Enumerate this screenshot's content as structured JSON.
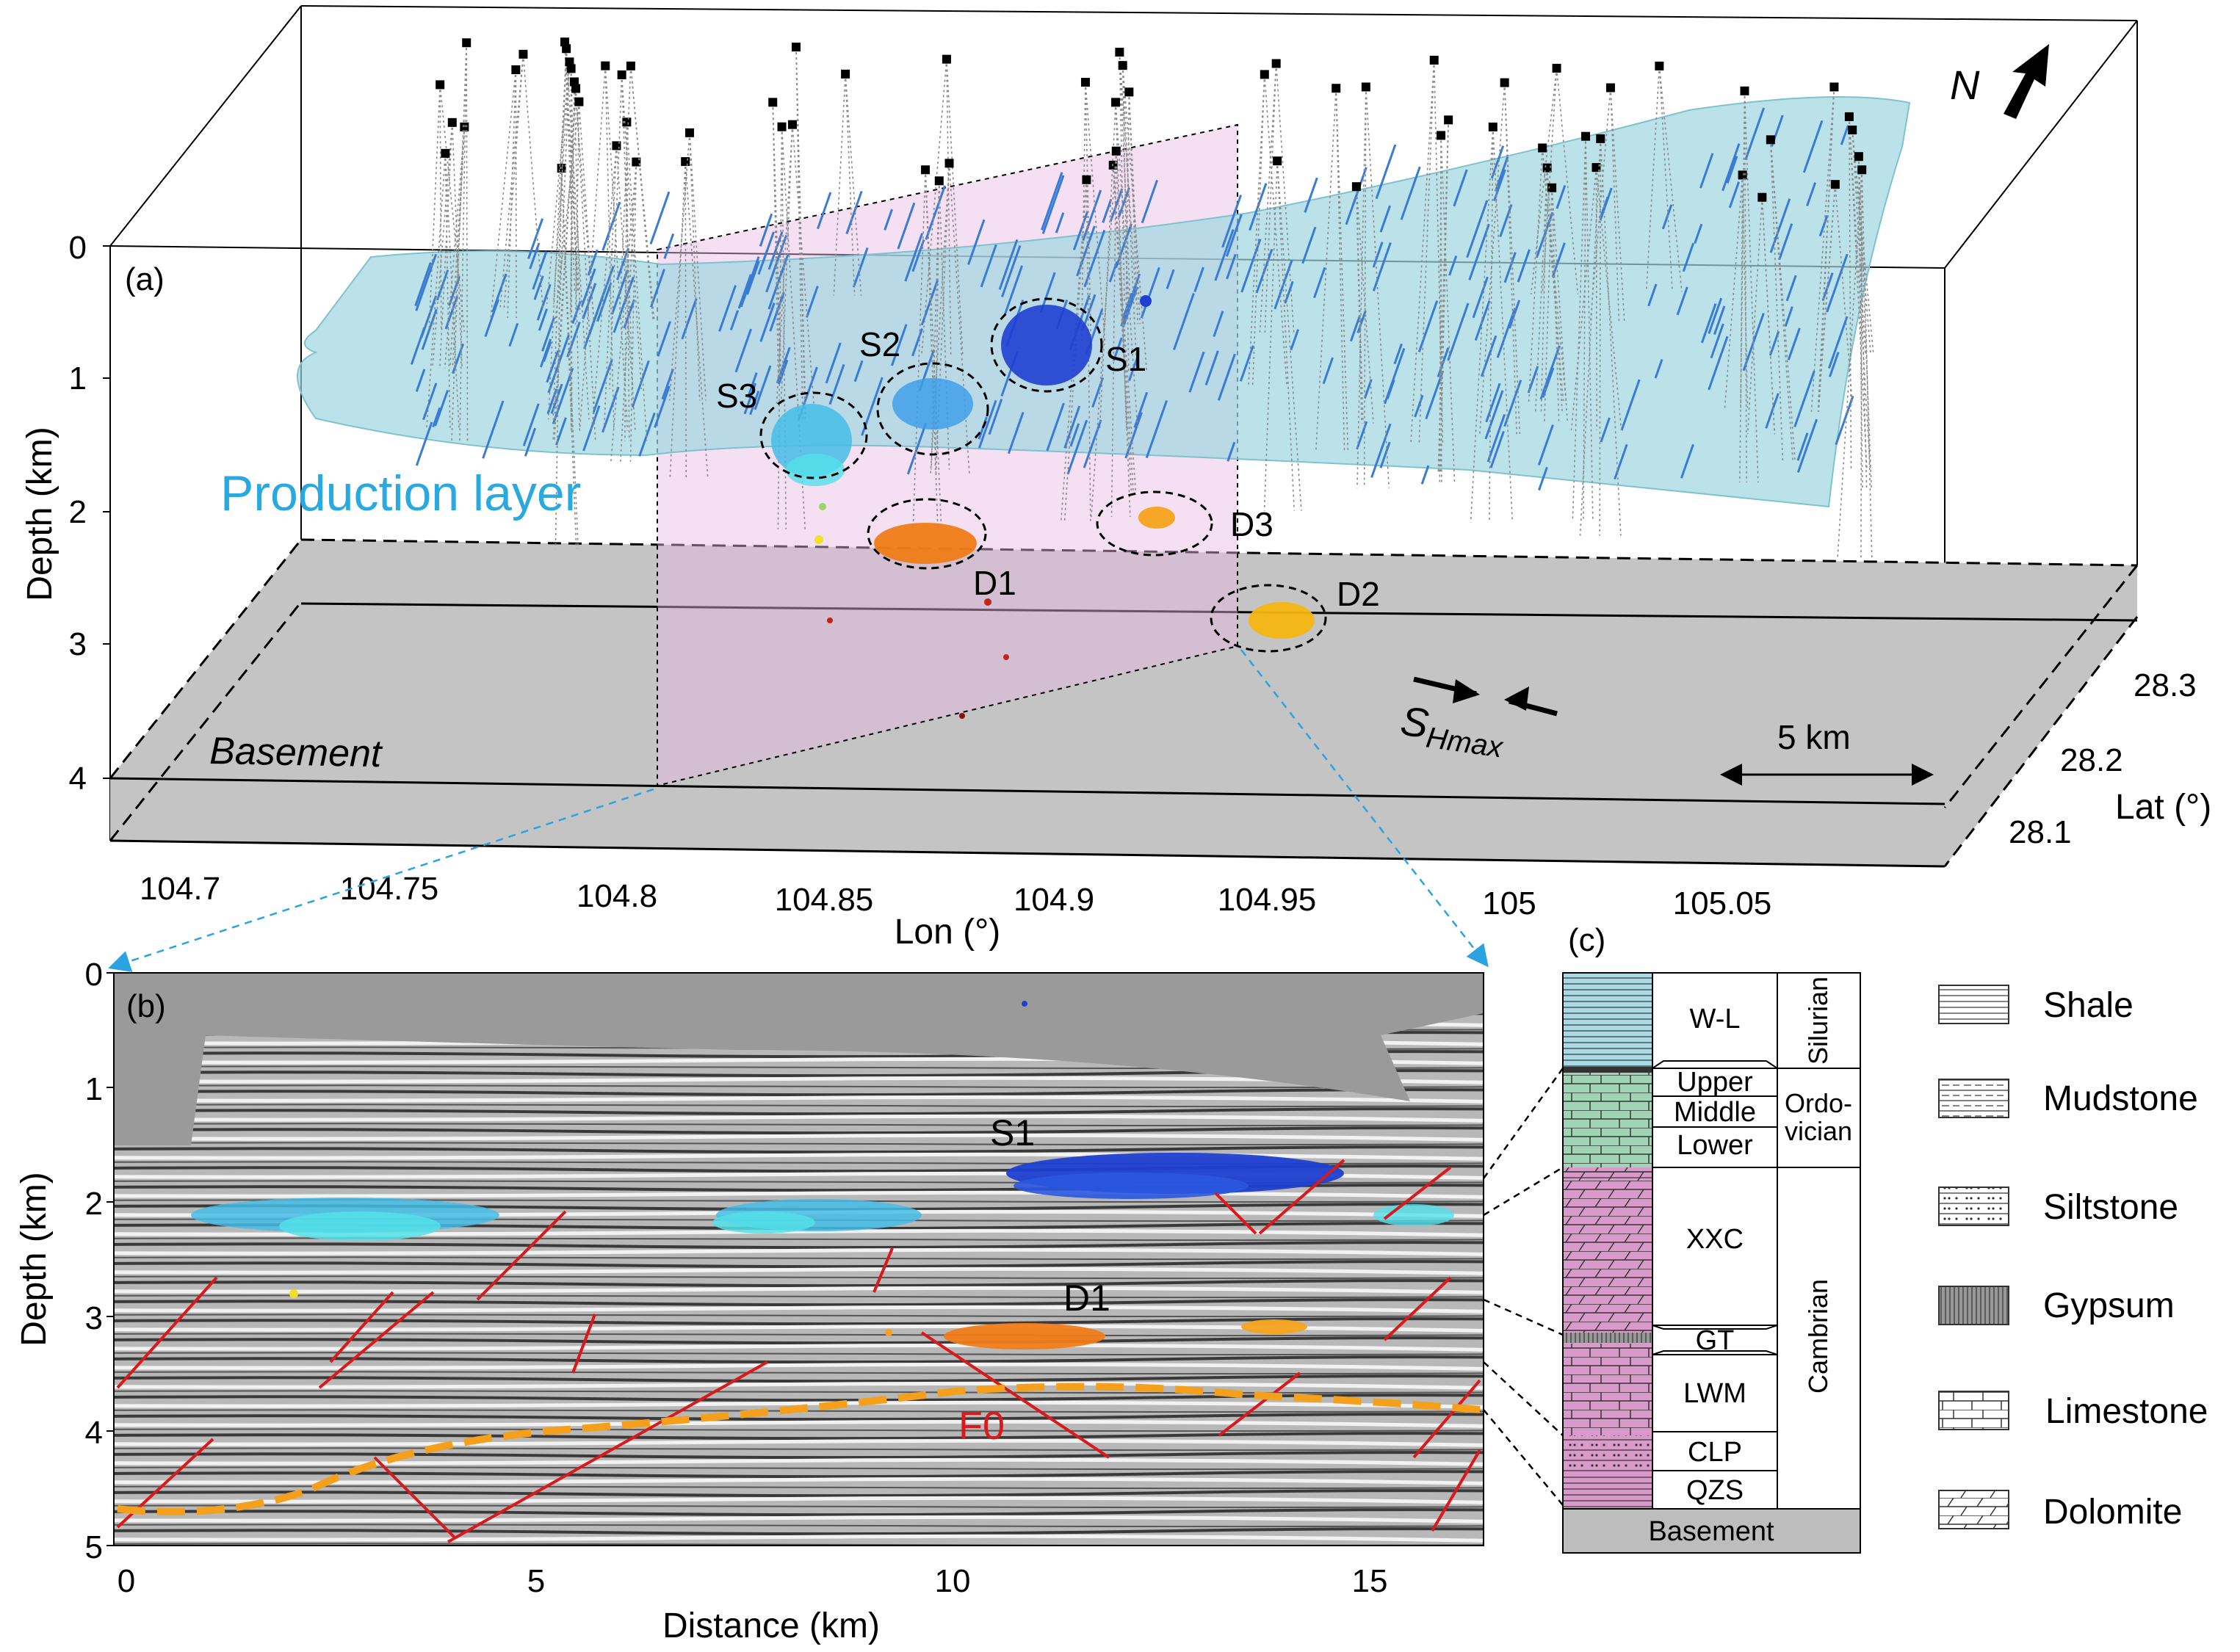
{
  "panel_a": {
    "label": "(a)",
    "depth_axis_label": "Depth (km)",
    "depth_ticks": [
      "0",
      "1",
      "2",
      "3",
      "4"
    ],
    "lon_axis_label": "Lon (°)",
    "lon_ticks": [
      "104.7",
      "104.75",
      "104.8",
      "104.85",
      "104.9",
      "104.95",
      "105",
      "105.05"
    ],
    "lat_axis_label": "Lat (°)",
    "lat_ticks": [
      "28.3",
      "28.2",
      "28.1"
    ],
    "production_layer_label": "Production layer",
    "basement_label": "Basement",
    "clusters": [
      "S1",
      "S2",
      "S3",
      "D1",
      "D2",
      "D3"
    ],
    "stress_label": "S",
    "stress_subscript": "Hmax",
    "north_label": "N",
    "scale_label": "5 km",
    "colors": {
      "production_layer": "#9fd6e0",
      "basement": "#c4c4c4",
      "fractures": "#3a7bd5",
      "section_plane": "#f0d9ef"
    }
  },
  "panel_b": {
    "label": "(b)",
    "depth_axis_label": "Depth (km)",
    "depth_ticks": [
      "0",
      "1",
      "2",
      "3",
      "4",
      "5"
    ],
    "distance_axis_label": "Distance (km)",
    "distance_ticks": [
      "0",
      "5",
      "10",
      "15"
    ],
    "cluster_labels": [
      "S1",
      "D1"
    ],
    "fault_label": "F0",
    "colors": {
      "faults": "#d9191c",
      "f0_trace": "#f4a01c"
    }
  },
  "panel_c": {
    "label": "(c)",
    "units": [
      "W-L",
      "Upper",
      "Middle",
      "Lower",
      "XXC",
      "GT",
      "LWM",
      "CLP",
      "QZS"
    ],
    "base_unit": "Basement",
    "systems": [
      "Silurian",
      "Ordo-",
      "vician",
      "Cambrian"
    ],
    "legend": [
      "Shale",
      "Mudstone",
      "Siltstone",
      "Gypsum",
      "Limestone",
      "Dolomite"
    ],
    "colors": {
      "silurian": "#a9dbe6",
      "ordovician": "#9fd4b4",
      "cambrian": "#d99acb",
      "basement": "#bdbdbd"
    }
  }
}
